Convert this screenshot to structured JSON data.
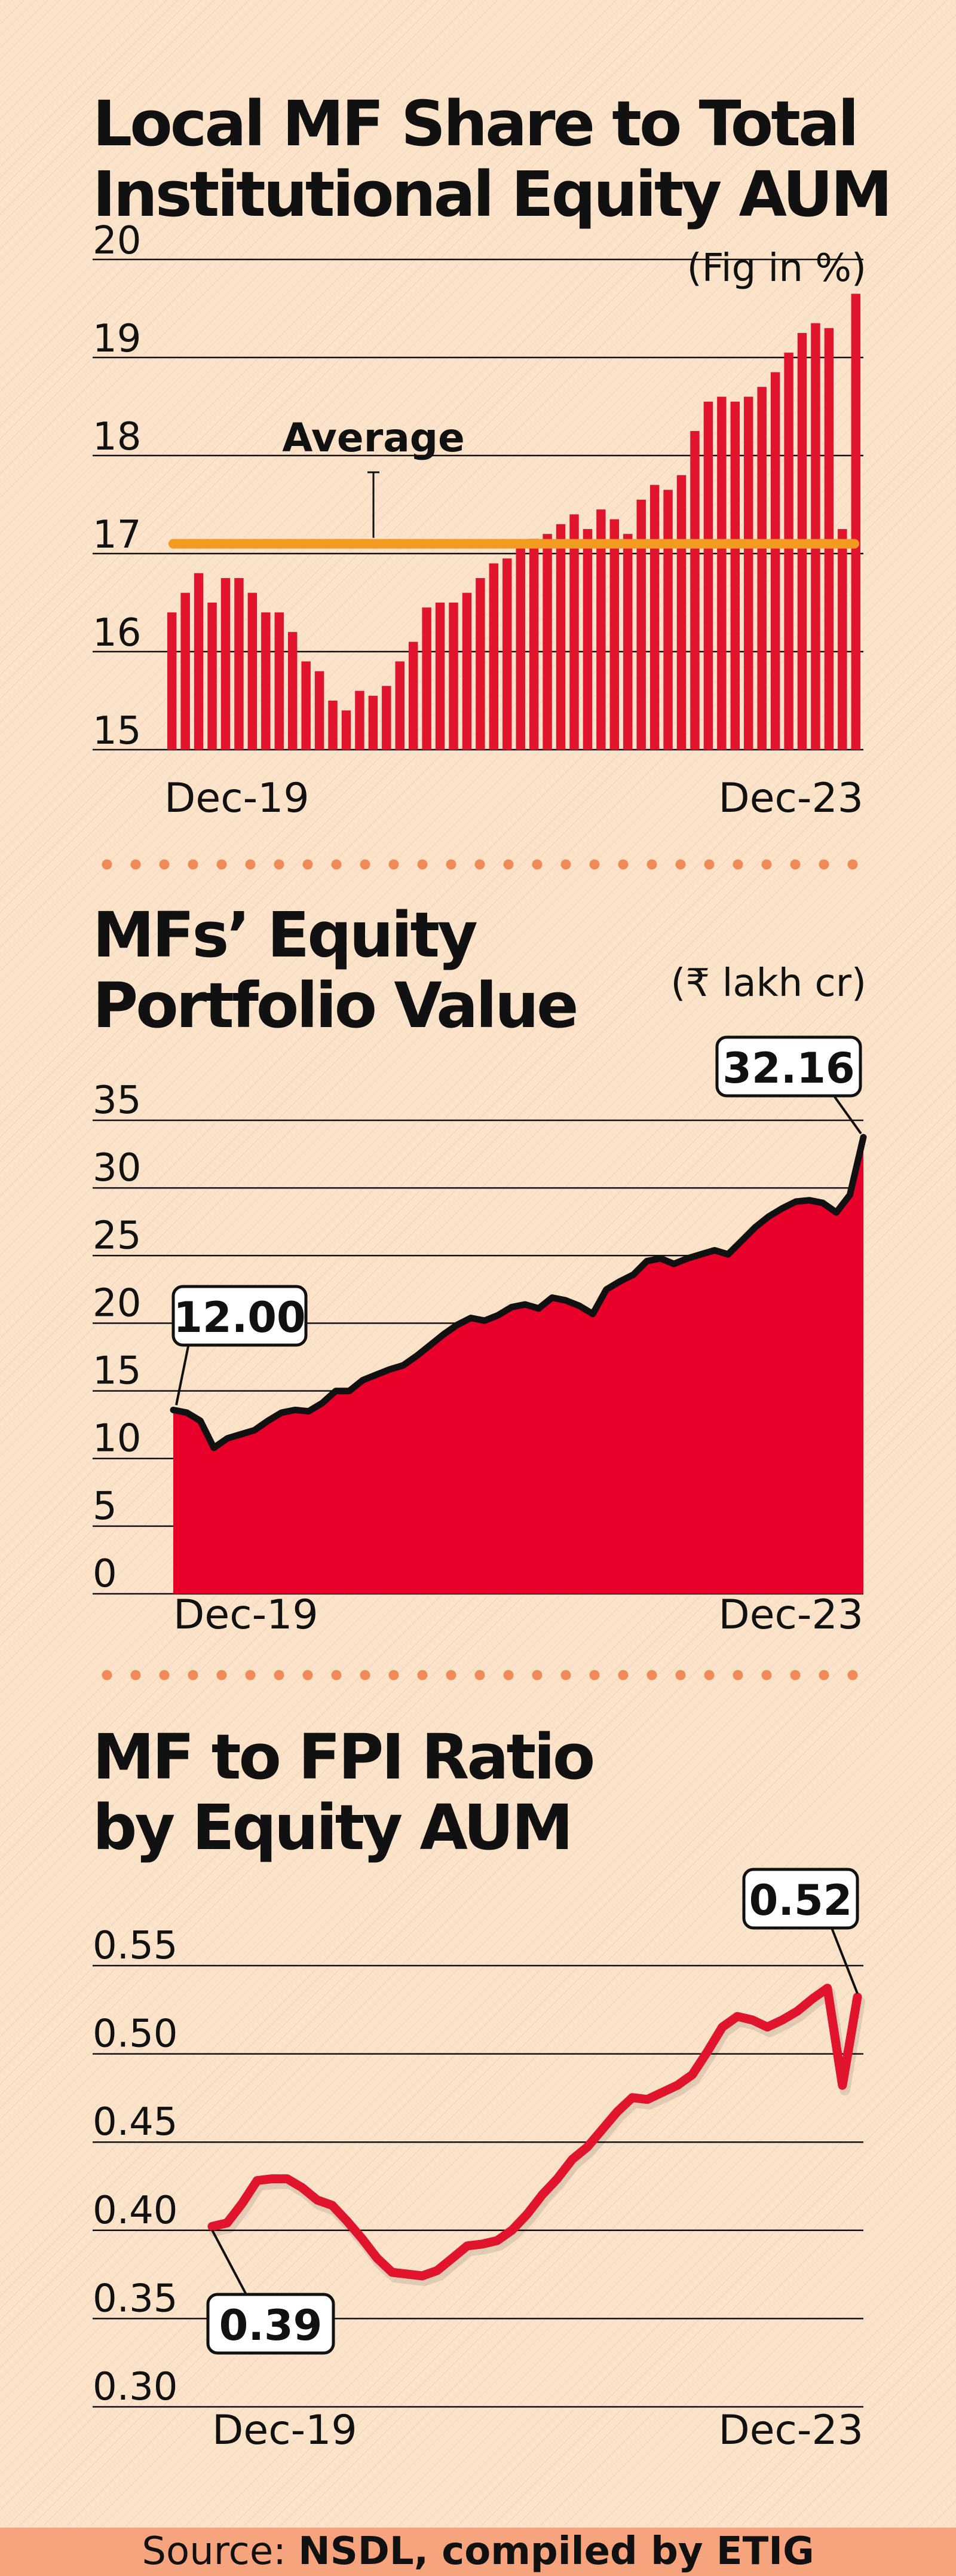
{
  "charts": [
    {
      "title_line1": "Local MF Share to Total",
      "title_line2": "Institutional Equity AUM",
      "unit": "(Fig in %)",
      "average_label": "Average"
    },
    {
      "title_line1": "MFs’ Equity",
      "title_line2": "Portfolio Value",
      "unit": "(₹ lakh cr)"
    },
    {
      "title_line1": "MF to FPI Ratio",
      "title_line2": "by Equity AUM",
      "unit": ""
    }
  ],
  "footer": {
    "prefix": "Source: ",
    "source": "NSDL, compiled by ETIG"
  },
  "colors": {
    "bar": "#e0142c",
    "area": "#e8002a",
    "line": "#111111",
    "average": "#f39a22",
    "ratio_line": "#e0142c",
    "divider": "#f08a58",
    "background": "#fbe3c9",
    "footer_bg": "#f5a47d"
  },
  "chart_data": [
    {
      "type": "bar",
      "title": "Local MF Share to Total Institutional Equity AUM",
      "ylabel": "(Fig in %)",
      "yticks": [
        20,
        19,
        18,
        17,
        16,
        15
      ],
      "ylim": [
        15,
        20
      ],
      "xtick_labels": [
        "Dec-19",
        "Dec-23"
      ],
      "average": 17.1,
      "average_label": "Average",
      "values": [
        16.4,
        16.6,
        16.8,
        16.5,
        16.75,
        16.75,
        16.6,
        16.4,
        16.4,
        16.2,
        15.9,
        15.8,
        15.5,
        15.4,
        15.6,
        15.55,
        15.65,
        15.9,
        16.1,
        16.45,
        16.5,
        16.5,
        16.6,
        16.75,
        16.9,
        16.95,
        17.1,
        17.15,
        17.2,
        17.3,
        17.4,
        17.25,
        17.45,
        17.35,
        17.2,
        17.55,
        17.7,
        17.65,
        17.8,
        18.25,
        18.55,
        18.6,
        18.55,
        18.6,
        18.7,
        18.85,
        19.05,
        19.25,
        19.35,
        19.3,
        17.25,
        19.65
      ]
    },
    {
      "type": "area",
      "title": "MFs’ Equity Portfolio Value",
      "ylabel": "(₹ lakh cr)",
      "yticks": [
        35,
        30,
        25,
        20,
        15,
        10,
        5,
        0
      ],
      "ylim": [
        0,
        35
      ],
      "xtick_labels": [
        "Dec-19",
        "Dec-23"
      ],
      "values": [
        12.0,
        11.8,
        11.2,
        9.2,
        9.9,
        10.2,
        10.5,
        11.2,
        11.8,
        12.0,
        11.9,
        12.5,
        13.4,
        13.4,
        14.2,
        14.6,
        15.0,
        15.3,
        16.0,
        16.8,
        17.6,
        18.3,
        18.8,
        18.6,
        19.0,
        19.6,
        19.8,
        19.5,
        20.3,
        20.1,
        19.7,
        19.1,
        20.9,
        21.5,
        22.0,
        23.0,
        23.2,
        22.8,
        23.2,
        23.5,
        23.8,
        23.5,
        24.5,
        25.5,
        26.3,
        26.9,
        27.4,
        27.5,
        27.3,
        26.6,
        27.9,
        32.16
      ],
      "annotations": [
        {
          "label": "12.00",
          "value": 12.0,
          "position": "start"
        },
        {
          "label": "32.16",
          "value": 32.16,
          "position": "end"
        }
      ]
    },
    {
      "type": "line",
      "title": "MF to FPI Ratio by Equity AUM",
      "ylabel": "",
      "yticks": [
        "0.55",
        "0.50",
        "0.45",
        "0.40",
        "0.35",
        "0.30"
      ],
      "ylim": [
        0.3,
        0.55
      ],
      "xtick_labels": [
        "Dec-19",
        "Dec-23"
      ],
      "values": [
        0.39,
        0.392,
        0.403,
        0.416,
        0.417,
        0.417,
        0.412,
        0.405,
        0.402,
        0.393,
        0.383,
        0.372,
        0.364,
        0.363,
        0.362,
        0.365,
        0.372,
        0.379,
        0.38,
        0.382,
        0.388,
        0.397,
        0.408,
        0.417,
        0.428,
        0.435,
        0.445,
        0.455,
        0.463,
        0.462,
        0.466,
        0.47,
        0.476,
        0.489,
        0.503,
        0.509,
        0.507,
        0.503,
        0.507,
        0.512,
        0.519,
        0.525,
        0.47,
        0.52
      ],
      "annotations": [
        {
          "label": "0.39",
          "value": 0.39,
          "position": "start"
        },
        {
          "label": "0.52",
          "value": 0.52,
          "position": "end"
        }
      ]
    }
  ]
}
